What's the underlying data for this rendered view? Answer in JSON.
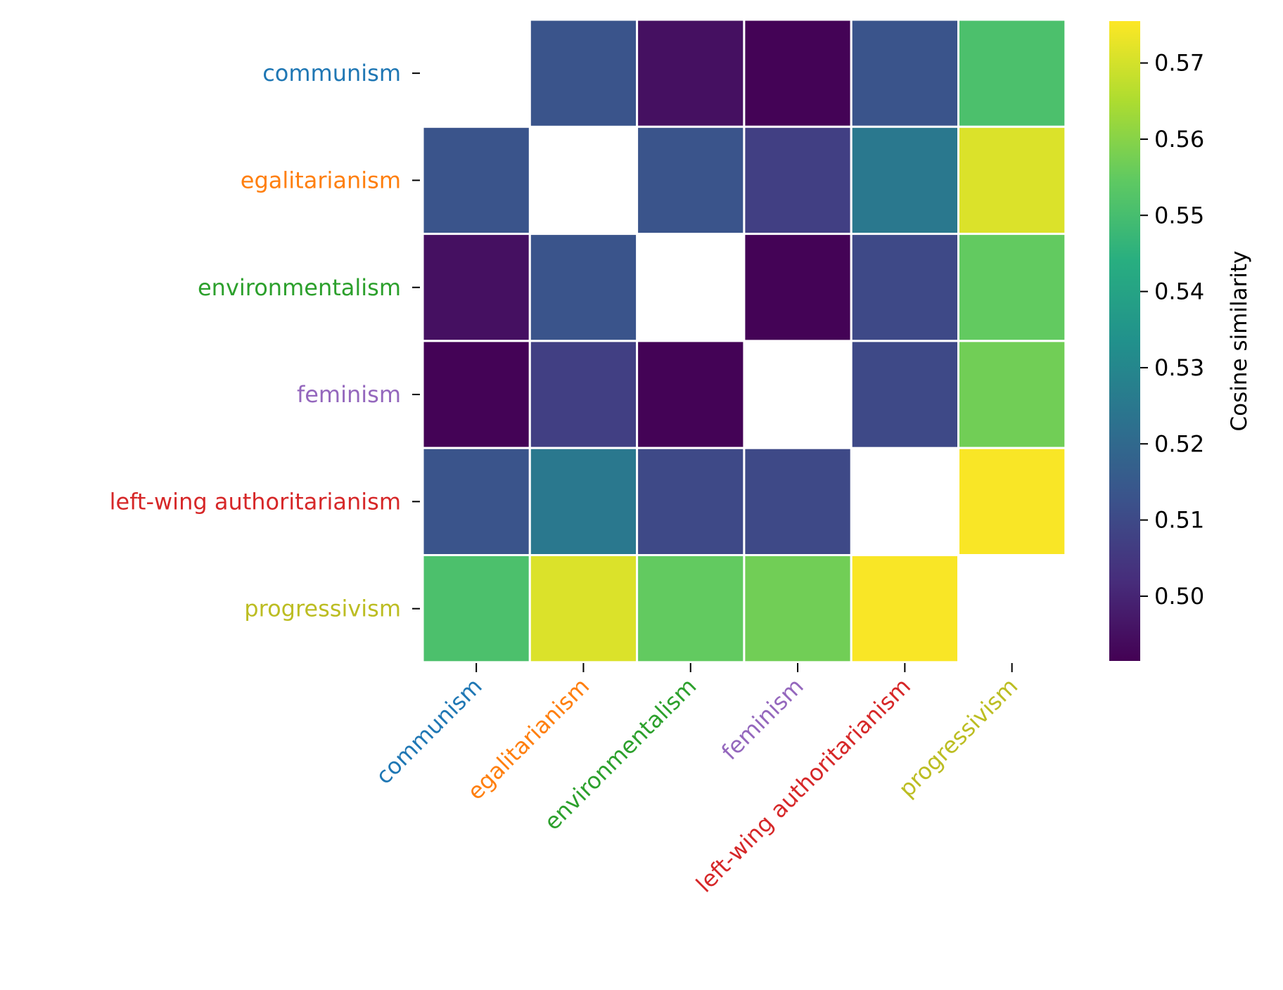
{
  "chart_data": {
    "type": "heatmap",
    "title": "",
    "rows": [
      "communism",
      "egalitarianism",
      "environmentalism",
      "feminism",
      "left-wing authoritarianism",
      "progressivism"
    ],
    "columns": [
      "communism",
      "egalitarianism",
      "environmentalism",
      "feminism",
      "left-wing authoritarianism",
      "progressivism"
    ],
    "label_colors": [
      "#1f77b4",
      "#ff7f0e",
      "#2ca02c",
      "#9467bd",
      "#d62728",
      "#bcbd22"
    ],
    "values": [
      [
        null,
        0.513,
        0.495,
        0.492,
        0.513,
        0.551
      ],
      [
        0.513,
        null,
        0.513,
        0.507,
        0.525,
        0.571
      ],
      [
        0.495,
        0.513,
        null,
        0.492,
        0.51,
        0.555
      ],
      [
        0.492,
        0.507,
        0.492,
        null,
        0.51,
        0.557
      ],
      [
        0.513,
        0.525,
        0.51,
        0.51,
        null,
        0.575
      ],
      [
        0.551,
        0.571,
        0.555,
        0.557,
        0.575,
        null
      ]
    ],
    "diagonal": "masked",
    "colormap": "viridis",
    "vmin": 0.4915,
    "vmax": 0.5755,
    "colorbar": {
      "label": "Cosine similarity",
      "ticks": [
        "0.50",
        "0.51",
        "0.52",
        "0.53",
        "0.54",
        "0.55",
        "0.56",
        "0.57"
      ],
      "tick_values": [
        0.5,
        0.51,
        0.52,
        0.53,
        0.54,
        0.55,
        0.56,
        0.57
      ]
    }
  }
}
